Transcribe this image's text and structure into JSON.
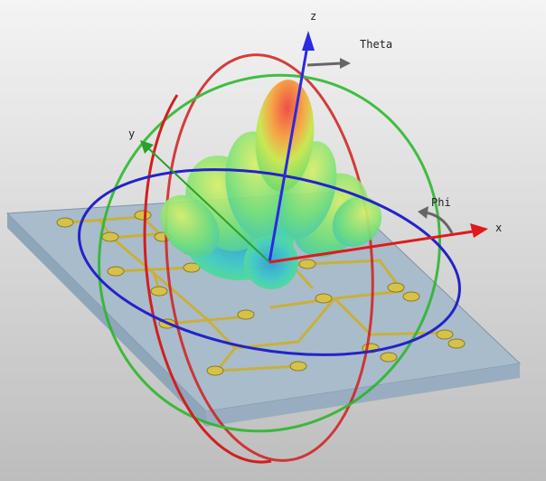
{
  "labels": {
    "axis_z": "z",
    "axis_y": "y",
    "axis_x": "x",
    "theta": "Theta",
    "phi": "Phi"
  },
  "colors": {
    "background_top": "#f4f4f4",
    "background_bottom": "#bdbdbd",
    "substrate_top": "#a9bccb",
    "substrate_side": "#8ea6ba",
    "patch": "#d6c24a",
    "feed": "#c8b03c",
    "ring_red": "#d11f1f",
    "ring_green": "#26b526",
    "ring_blue": "#2323c8",
    "axis_z": "#2a2ae0",
    "axis_x": "#e01a1a",
    "axis_y": "#2aa02a",
    "angle_arrow": "#666666",
    "lobe_core": "#f0433a",
    "lobe_mid": "#b9e04a",
    "lobe_outer": "#46e06a",
    "lobe_base": "#35b8d8"
  },
  "icons": {
    "theta_arrow": "arrow-right-icon",
    "phi_arrow": "curved-arrow-left-icon"
  }
}
